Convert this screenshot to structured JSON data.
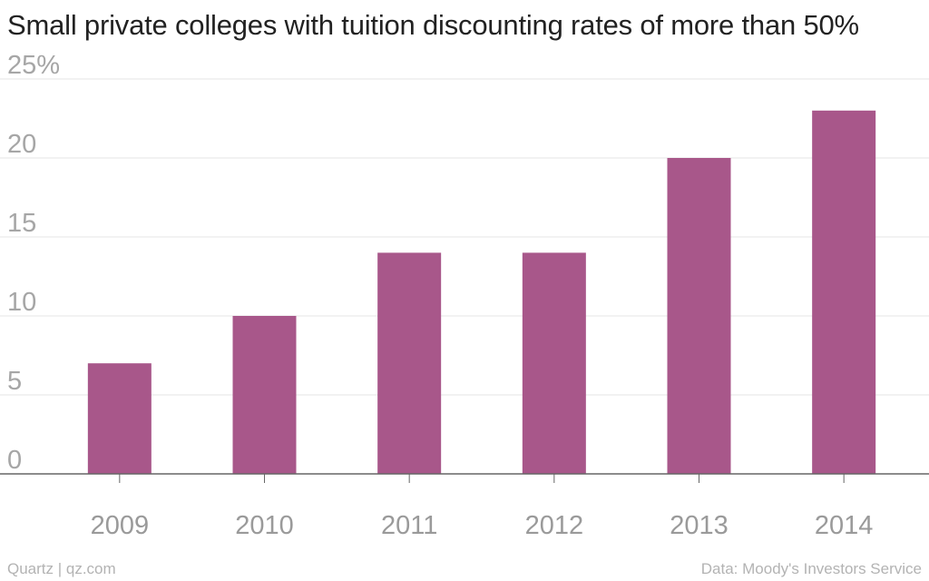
{
  "chart_data": {
    "type": "bar",
    "title": "Small private colleges with tuition discounting rates of more than 50%",
    "categories": [
      "2009",
      "2010",
      "2011",
      "2012",
      "2013",
      "2014"
    ],
    "values": [
      7,
      10,
      14,
      14,
      20,
      23
    ],
    "xlabel": "",
    "ylabel": "",
    "ylim": [
      0,
      25
    ],
    "yticks": [
      0,
      5,
      10,
      15,
      20,
      25
    ],
    "ytick_labels": [
      "0",
      "5",
      "10",
      "15",
      "20",
      "25%"
    ],
    "grid": true,
    "bar_color": "#a8578a"
  },
  "footer": {
    "source_left": "Quartz | qz.com",
    "source_right": "Data: Moody's Investors Service"
  },
  "colors": {
    "bar": "#a8578a",
    "gridline": "#e6e6e6",
    "axis": "#666666"
  }
}
